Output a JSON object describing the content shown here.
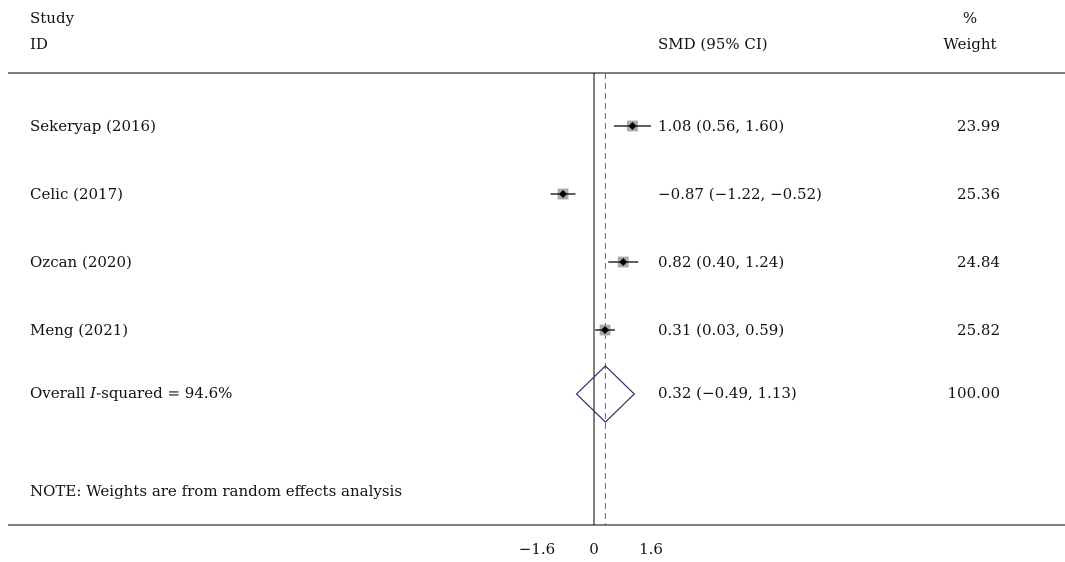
{
  "chart_data": {
    "type": "forest",
    "header": {
      "study_line1": "Study",
      "study_line2": "ID",
      "effect": "SMD (95% CI)",
      "weight_line1": "%",
      "weight_line2": "Weight"
    },
    "studies": [
      {
        "label": "Sekeryap (2016)",
        "estimate": 1.08,
        "lower": 0.56,
        "upper": 1.6,
        "ci_text": "1.08 (0.56, 1.60)",
        "weight": 23.99,
        "weight_text": "23.99"
      },
      {
        "label": "Celic (2017)",
        "estimate": -0.87,
        "lower": -1.22,
        "upper": -0.52,
        "ci_text": "−0.87 (−1.22, −0.52)",
        "weight": 25.36,
        "weight_text": "25.36"
      },
      {
        "label": "Ozcan (2020)",
        "estimate": 0.82,
        "lower": 0.4,
        "upper": 1.24,
        "ci_text": "0.82 (0.40, 1.24)",
        "weight": 24.84,
        "weight_text": "24.84"
      },
      {
        "label": "Meng (2021)",
        "estimate": 0.31,
        "lower": 0.03,
        "upper": 0.59,
        "ci_text": "0.31 (0.03, 0.59)",
        "weight": 25.82,
        "weight_text": "25.82"
      }
    ],
    "overall": {
      "label_prefix": "Overall ",
      "label_italic": "I",
      "label_suffix": "-squared = 94.6%",
      "estimate": 0.32,
      "lower": -0.49,
      "upper": 1.13,
      "ci_text": "0.32 (−0.49, 1.13)",
      "weight_text": "100.00"
    },
    "note": "NOTE: Weights are from random effects analysis",
    "x_ticks": [
      {
        "value": -1.6,
        "label": "−1.6"
      },
      {
        "value": 0,
        "label": "0"
      },
      {
        "value": 1.6,
        "label": "1.6"
      }
    ],
    "null_line": 0,
    "colors": {
      "diamond": "#2e2a6e",
      "overall_line": "#9b4b6b",
      "box": "#a9a9a9",
      "line": "#000000"
    }
  }
}
